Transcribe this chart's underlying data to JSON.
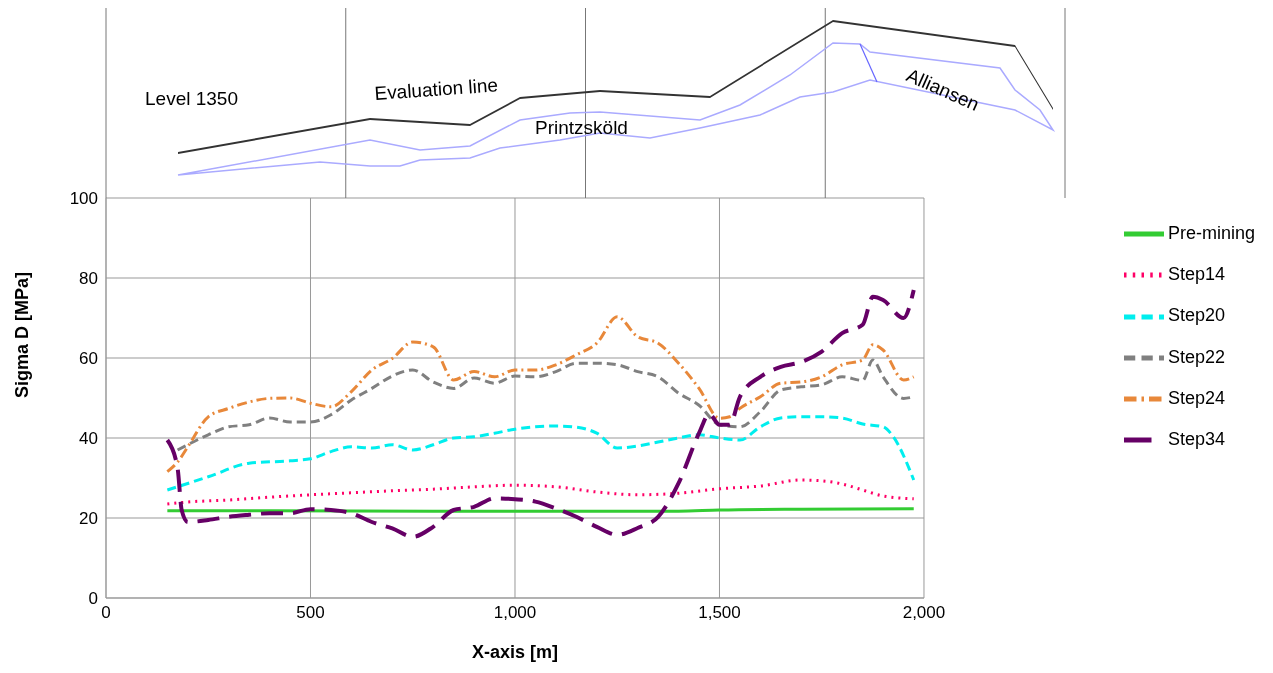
{
  "chart_data": {
    "type": "line",
    "xlabel": "X-axis [m]",
    "ylabel": "Sigma D [MPa]",
    "xlim": [
      0,
      2000
    ],
    "xticks": [
      0,
      500,
      {
        "value": 1000,
        "label": "1,000"
      },
      {
        "value": 1500,
        "label": "1,500"
      },
      {
        "value": 2000,
        "label": "2,000"
      }
    ],
    "ylim": [
      0,
      100
    ],
    "yticks": [
      0,
      20,
      40,
      60,
      80,
      100
    ],
    "grid": true,
    "legend": "right",
    "marker": "none",
    "annotations": [
      "Level 1350",
      "Evaluation line",
      "Printzsköld",
      "Alliansen"
    ],
    "series": [
      {
        "name": "Pre-mining",
        "color": "#33cc33",
        "line_style": "solid",
        "x": [
          150,
          400,
          800,
          1200,
          1400,
          1500,
          1700,
          1975
        ],
        "values": [
          21.8,
          21.8,
          21.7,
          21.7,
          21.7,
          22.0,
          22.2,
          22.3
        ]
      },
      {
        "name": "Step14",
        "color": "#ff0066",
        "line_style": "dotted",
        "x": [
          150,
          200,
          300,
          400,
          500,
          600,
          700,
          800,
          900,
          1000,
          1100,
          1200,
          1300,
          1400,
          1500,
          1600,
          1700,
          1750,
          1800,
          1850,
          1900,
          1975
        ],
        "values": [
          23.5,
          24,
          24.5,
          25.2,
          25.8,
          26.3,
          26.8,
          27.2,
          27.8,
          28.2,
          27.8,
          26.5,
          25.8,
          26.2,
          27.3,
          28,
          29.5,
          29.3,
          28.5,
          27,
          25.5,
          24.8
        ]
      },
      {
        "name": "Step20",
        "color": "#00eeee",
        "line_style": "dashed",
        "x": [
          150,
          250,
          350,
          450,
          500,
          550,
          600,
          650,
          700,
          750,
          800,
          850,
          900,
          950,
          1000,
          1050,
          1100,
          1150,
          1200,
          1250,
          1300,
          1350,
          1400,
          1450,
          1500,
          1550,
          1600,
          1650,
          1700,
          1750,
          1800,
          1850,
          1900,
          1925,
          1975
        ],
        "values": [
          27,
          30.3,
          33.7,
          34.3,
          34.8,
          36.6,
          37.8,
          37.5,
          38.3,
          37,
          38.3,
          40,
          40.3,
          41.2,
          42.2,
          42.8,
          43,
          42.7,
          41.2,
          37.5,
          38,
          39,
          40,
          40.8,
          40,
          39.5,
          42.8,
          45,
          45.3,
          45.3,
          45,
          43.5,
          42.8,
          40.3,
          29.5
        ]
      },
      {
        "name": "Step22",
        "color": "#808080",
        "line_style": "dashed",
        "x": [
          175,
          250,
          300,
          350,
          400,
          450,
          500,
          550,
          600,
          650,
          700,
          750,
          800,
          850,
          900,
          950,
          1000,
          1050,
          1100,
          1150,
          1200,
          1250,
          1300,
          1350,
          1400,
          1450,
          1500,
          1550,
          1600,
          1650,
          1700,
          1750,
          1800,
          1850,
          1875,
          1900,
          1950,
          1975
        ],
        "values": [
          37,
          40.8,
          42.8,
          43.3,
          45,
          44,
          44,
          45.8,
          49.5,
          52.4,
          55.5,
          57,
          54,
          52.4,
          55,
          53.7,
          55.5,
          55.3,
          56.6,
          58.7,
          58.7,
          58.3,
          56.6,
          55.3,
          51.2,
          48.2,
          43.3,
          42.8,
          46.6,
          52,
          52.8,
          53.3,
          55.3,
          54.4,
          59.5,
          55.3,
          49.9,
          50.3
        ]
      },
      {
        "name": "Step24",
        "color": "#e8883a",
        "line_style": "dashdot",
        "x": [
          150,
          175,
          200,
          250,
          300,
          350,
          400,
          450,
          500,
          550,
          600,
          650,
          700,
          750,
          800,
          850,
          900,
          950,
          1000,
          1050,
          1100,
          1150,
          1200,
          1250,
          1300,
          1350,
          1400,
          1450,
          1500,
          1525,
          1550,
          1600,
          1650,
          1700,
          1750,
          1800,
          1850,
          1875,
          1900,
          1950,
          1975
        ],
        "values": [
          31.6,
          34,
          37.8,
          45.3,
          47.4,
          49,
          49.9,
          50,
          48.7,
          47.8,
          51.6,
          57,
          59.9,
          64,
          62.8,
          54.5,
          56.6,
          55.3,
          57,
          57,
          58.3,
          60.8,
          63.7,
          70.3,
          65.3,
          63.7,
          58.7,
          52.4,
          44.9,
          45.3,
          47.4,
          50.3,
          53.7,
          54,
          55.3,
          58.3,
          59.5,
          63.3,
          62,
          54.5,
          55.3
        ]
      },
      {
        "name": "Step34",
        "color": "#660066",
        "line_style": "longdash",
        "x": [
          150,
          175,
          185,
          200,
          250,
          300,
          350,
          400,
          450,
          500,
          550,
          600,
          650,
          700,
          750,
          800,
          850,
          900,
          950,
          1000,
          1050,
          1100,
          1150,
          1200,
          1250,
          1300,
          1350,
          1400,
          1450,
          1475,
          1500,
          1525,
          1550,
          1600,
          1650,
          1700,
          1750,
          1800,
          1850,
          1875,
          1900,
          1950,
          1975
        ],
        "values": [
          39.5,
          32.5,
          22,
          19,
          19.5,
          20.3,
          20.8,
          21.2,
          21.2,
          22.2,
          22,
          21.2,
          19,
          17.4,
          15.3,
          17.8,
          22,
          22.8,
          24.9,
          24.7,
          24.1,
          22.4,
          20.3,
          17.8,
          15.8,
          17.5,
          20.3,
          28.7,
          41.2,
          46,
          43.3,
          43.3,
          50.3,
          55.3,
          57.8,
          59,
          61.6,
          66.2,
          68.3,
          75.3,
          74.5,
          70,
          77
        ]
      }
    ]
  }
}
